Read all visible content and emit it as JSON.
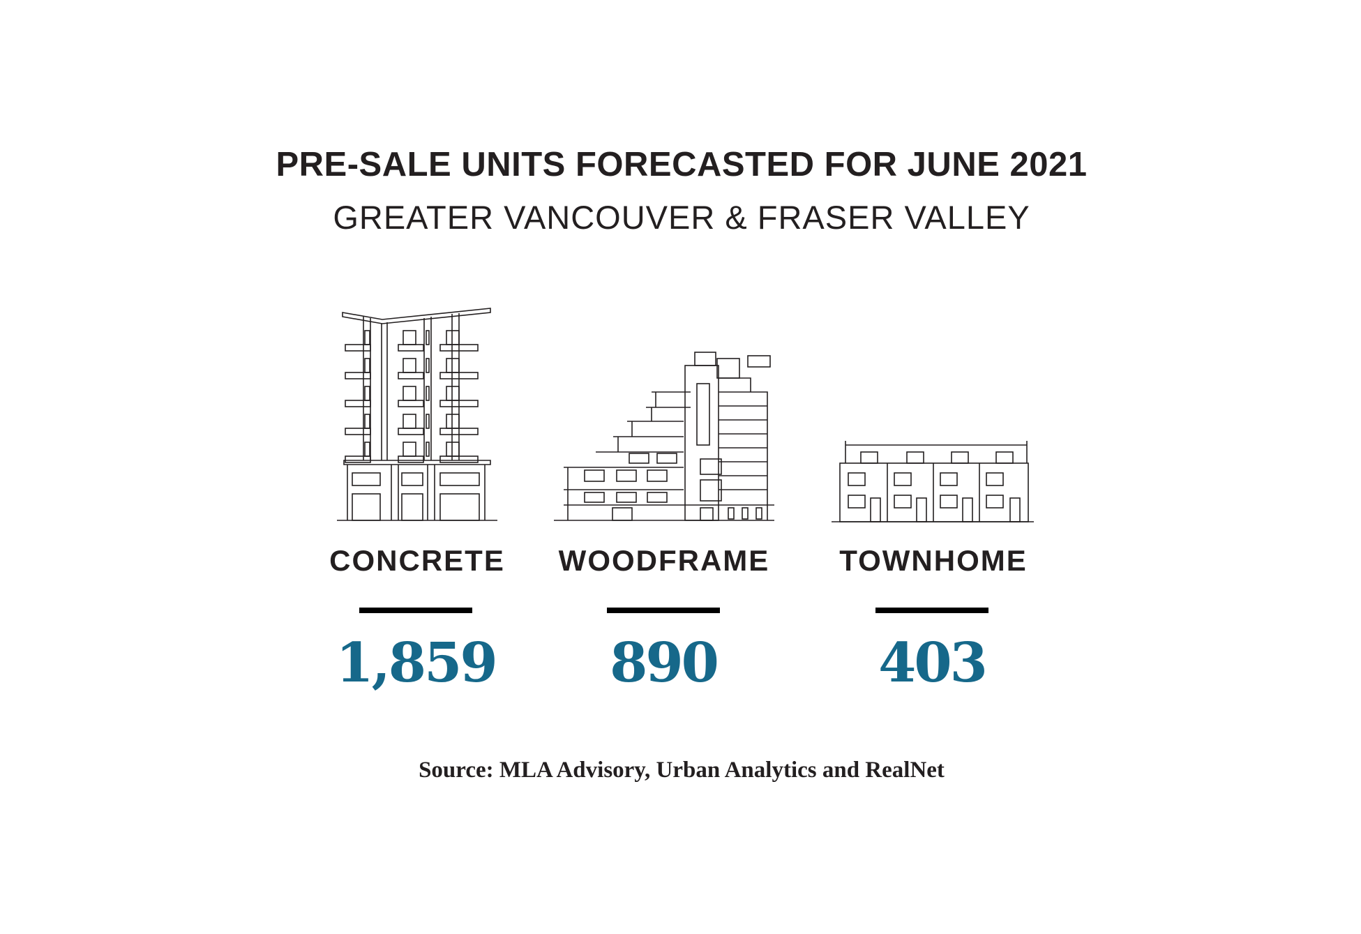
{
  "title": "PRE-SALE UNITS FORECASTED FOR JUNE 2021",
  "subtitle": "GREATER VANCOUVER & FRASER VALLEY",
  "accent_color": "#16688a",
  "categories": [
    {
      "label": "CONCRETE",
      "value": "1,859",
      "icon": "concrete-tower-icon"
    },
    {
      "label": "WOODFRAME",
      "value": "890",
      "icon": "woodframe-building-icon"
    },
    {
      "label": "TOWNHOME",
      "value": "403",
      "icon": "townhome-icon"
    }
  ],
  "source": "Source: MLA Advisory, Urban Analytics and RealNet"
}
